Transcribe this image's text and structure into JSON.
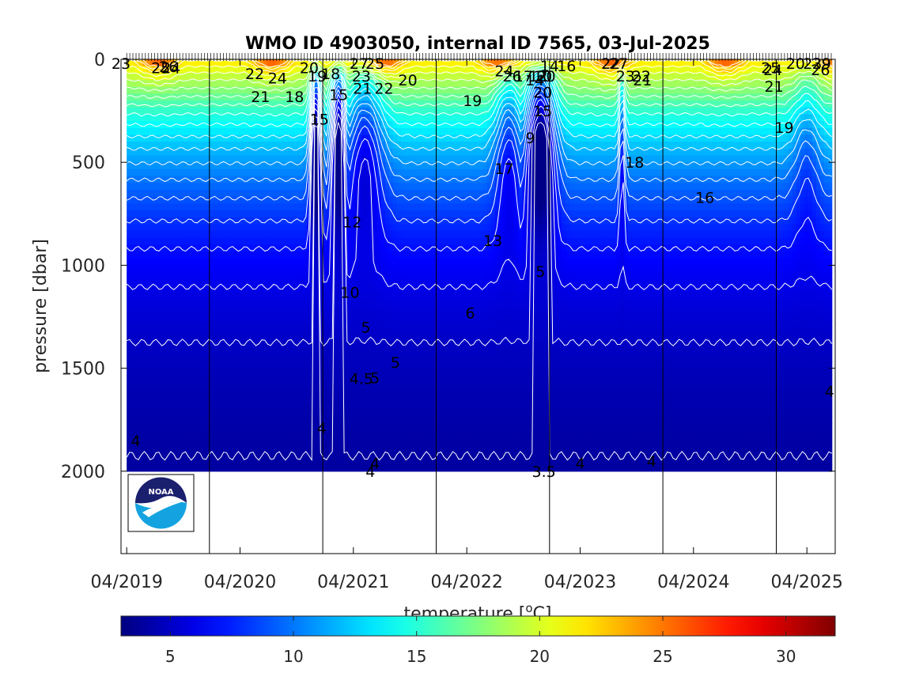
{
  "chart_data": {
    "type": "heatmap",
    "title": "WMO ID 4903050, internal ID 7565, 03-Jul-2025",
    "xlabel": "",
    "ylabel": "pressure [dbar]",
    "colorbar_label": "temperature [°C]",
    "colorbar_label_base": "temperature [",
    "colorbar_label_sup": "o",
    "colorbar_label_unit": "C]",
    "ylim": [
      2400,
      0
    ],
    "y_reversed": true,
    "colorbar_range": [
      3,
      32
    ],
    "colormap": "jet",
    "contour_color": "#ffffff",
    "x_tick_labels": [
      "04/2019",
      "04/2020",
      "04/2021",
      "04/2022",
      "04/2023",
      "04/2024",
      "04/2025"
    ],
    "x_ticks_years": [
      2019.25,
      2020.25,
      2021.25,
      2022.25,
      2023.25,
      2024.25,
      2025.25
    ],
    "x_range_years": [
      2019.2,
      2025.5
    ],
    "y_tick_labels": [
      "0",
      "500",
      "1000",
      "1500",
      "2000"
    ],
    "y_ticks": [
      0,
      500,
      1000,
      1500,
      2000
    ],
    "colorbar_ticks": [
      5,
      10,
      15,
      20,
      25,
      30
    ],
    "colorbar_tick_labels": [
      "5",
      "10",
      "15",
      "20",
      "25",
      "30"
    ],
    "profile_max_pressure": 2000,
    "vertical_markers_years": [
      2019.98,
      2020.98,
      2021.98,
      2022.98,
      2023.98,
      2024.98
    ],
    "contour_labels": [
      {
        "t": 2019.2,
        "p": 20,
        "text": "23"
      },
      {
        "t": 2019.55,
        "p": 40,
        "text": "25"
      },
      {
        "t": 2019.62,
        "p": 35,
        "text": "26"
      },
      {
        "t": 2019.64,
        "p": 40,
        "text": "24"
      },
      {
        "t": 2020.38,
        "p": 70,
        "text": "22"
      },
      {
        "t": 2020.43,
        "p": 180,
        "text": "21"
      },
      {
        "t": 2020.58,
        "p": 90,
        "text": "24"
      },
      {
        "t": 2020.86,
        "p": 40,
        "text": "20"
      },
      {
        "t": 2020.73,
        "p": 180,
        "text": "18"
      },
      {
        "t": 2020.93,
        "p": 80,
        "text": "19"
      },
      {
        "t": 2021.05,
        "p": 70,
        "text": "18"
      },
      {
        "t": 2021.12,
        "p": 170,
        "text": "15"
      },
      {
        "t": 2020.95,
        "p": 290,
        "text": "15"
      },
      {
        "t": 2021.3,
        "p": 20,
        "text": "27"
      },
      {
        "t": 2021.44,
        "p": 20,
        "text": "25"
      },
      {
        "t": 2021.32,
        "p": 80,
        "text": "23"
      },
      {
        "t": 2021.33,
        "p": 140,
        "text": "21"
      },
      {
        "t": 2021.52,
        "p": 140,
        "text": "22"
      },
      {
        "t": 2021.73,
        "p": 100,
        "text": "20"
      },
      {
        "t": 2022.3,
        "p": 200,
        "text": "19"
      },
      {
        "t": 2022.58,
        "p": 55,
        "text": "24"
      },
      {
        "t": 2022.65,
        "p": 80,
        "text": "26"
      },
      {
        "t": 2022.75,
        "p": 80,
        "text": "17"
      },
      {
        "t": 2022.85,
        "p": 100,
        "text": "14"
      },
      {
        "t": 2022.88,
        "p": 80,
        "text": "12"
      },
      {
        "t": 2022.92,
        "p": 80,
        "text": "10"
      },
      {
        "t": 2022.95,
        "p": 80,
        "text": "20"
      },
      {
        "t": 2022.92,
        "p": 160,
        "text": "20"
      },
      {
        "t": 2022.92,
        "p": 250,
        "text": "15"
      },
      {
        "t": 2022.81,
        "p": 380,
        "text": "9"
      },
      {
        "t": 2022.98,
        "p": 30,
        "text": "14"
      },
      {
        "t": 2023.13,
        "p": 30,
        "text": "16"
      },
      {
        "t": 2023.52,
        "p": 20,
        "text": "22"
      },
      {
        "t": 2023.59,
        "p": 20,
        "text": "27"
      },
      {
        "t": 2023.65,
        "p": 80,
        "text": "23"
      },
      {
        "t": 2023.79,
        "p": 80,
        "text": "22"
      },
      {
        "t": 2023.8,
        "p": 100,
        "text": "21"
      },
      {
        "t": 2022.58,
        "p": 530,
        "text": "17"
      },
      {
        "t": 2023.73,
        "p": 500,
        "text": "18"
      },
      {
        "t": 2024.35,
        "p": 670,
        "text": "16"
      },
      {
        "t": 2021.24,
        "p": 790,
        "text": "12"
      },
      {
        "t": 2022.48,
        "p": 880,
        "text": "13"
      },
      {
        "t": 2022.9,
        "p": 1030,
        "text": "5"
      },
      {
        "t": 2021.22,
        "p": 1130,
        "text": "10"
      },
      {
        "t": 2021.36,
        "p": 1300,
        "text": "5"
      },
      {
        "t": 2022.28,
        "p": 1230,
        "text": "6"
      },
      {
        "t": 2021.62,
        "p": 1470,
        "text": "5"
      },
      {
        "t": 2021.32,
        "p": 1550,
        "text": "4.5"
      },
      {
        "t": 2021.44,
        "p": 1545,
        "text": "5"
      },
      {
        "t": 2020.97,
        "p": 1790,
        "text": "4"
      },
      {
        "t": 2019.33,
        "p": 1850,
        "text": "4"
      },
      {
        "t": 2021.44,
        "p": 1960,
        "text": "4"
      },
      {
        "t": 2021.4,
        "p": 2000,
        "text": "4"
      },
      {
        "t": 2022.93,
        "p": 2000,
        "text": "3.5"
      },
      {
        "t": 2023.25,
        "p": 1960,
        "text": "4"
      },
      {
        "t": 2023.88,
        "p": 1950,
        "text": "4"
      },
      {
        "t": 2024.93,
        "p": 40,
        "text": "25"
      },
      {
        "t": 2024.95,
        "p": 50,
        "text": "24"
      },
      {
        "t": 2024.96,
        "p": 130,
        "text": "21"
      },
      {
        "t": 2025.15,
        "p": 20,
        "text": "20"
      },
      {
        "t": 2025.3,
        "p": 20,
        "text": "23"
      },
      {
        "t": 2025.38,
        "p": 20,
        "text": "29"
      },
      {
        "t": 2025.37,
        "p": 50,
        "text": "26"
      },
      {
        "t": 2025.05,
        "p": 330,
        "text": "19"
      },
      {
        "t": 2025.45,
        "p": 1610,
        "text": "4"
      }
    ]
  },
  "logo": {
    "name": "NOAA",
    "text": "NOAA",
    "colors": {
      "top": "#1a1f6e",
      "bottom": "#14a3e0",
      "ring": "#ffffff"
    }
  }
}
